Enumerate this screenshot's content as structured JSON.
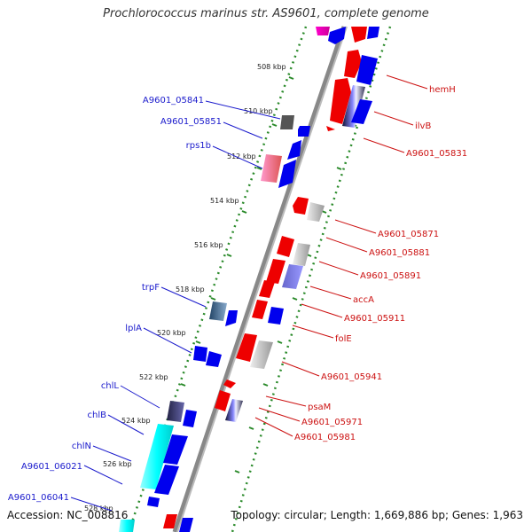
{
  "title": "Prochlorococcus marinus str. AS9601, complete genome",
  "footer": {
    "accession": "Accession: NC_008816",
    "topology": "Topology: circular; Length: 1,669,886 bp; Genes: 1,963"
  },
  "colors": {
    "strand_plus": "#0000ee",
    "strand_minus": "#ee0000",
    "backbone": "#888888",
    "tick": "#2a8a2a",
    "label_plus": "#1a1acc",
    "label_minus": "#cc1111"
  },
  "ruler": {
    "unit": "kbp",
    "ticks": [
      "508 kbp",
      "510 kbp",
      "512 kbp",
      "514 kbp",
      "516 kbp",
      "518 kbp",
      "520 kbp",
      "522 kbp",
      "524 kbp",
      "526 kbp",
      "528 kbp"
    ]
  },
  "labels_plus_strand": [
    "A9601_05841",
    "A9601_05851",
    "rps1b",
    "trpF",
    "lplA",
    "chlL",
    "chlB",
    "chlN",
    "A9601_06021",
    "A9601_06041"
  ],
  "labels_minus_strand": [
    "hemH",
    "ilvB",
    "A9601_05831",
    "A9601_05871",
    "A9601_05881",
    "A9601_05891",
    "accA",
    "A9601_05911",
    "folE",
    "A9601_05941",
    "psaM",
    "A9601_05971",
    "A9601_05981"
  ]
}
